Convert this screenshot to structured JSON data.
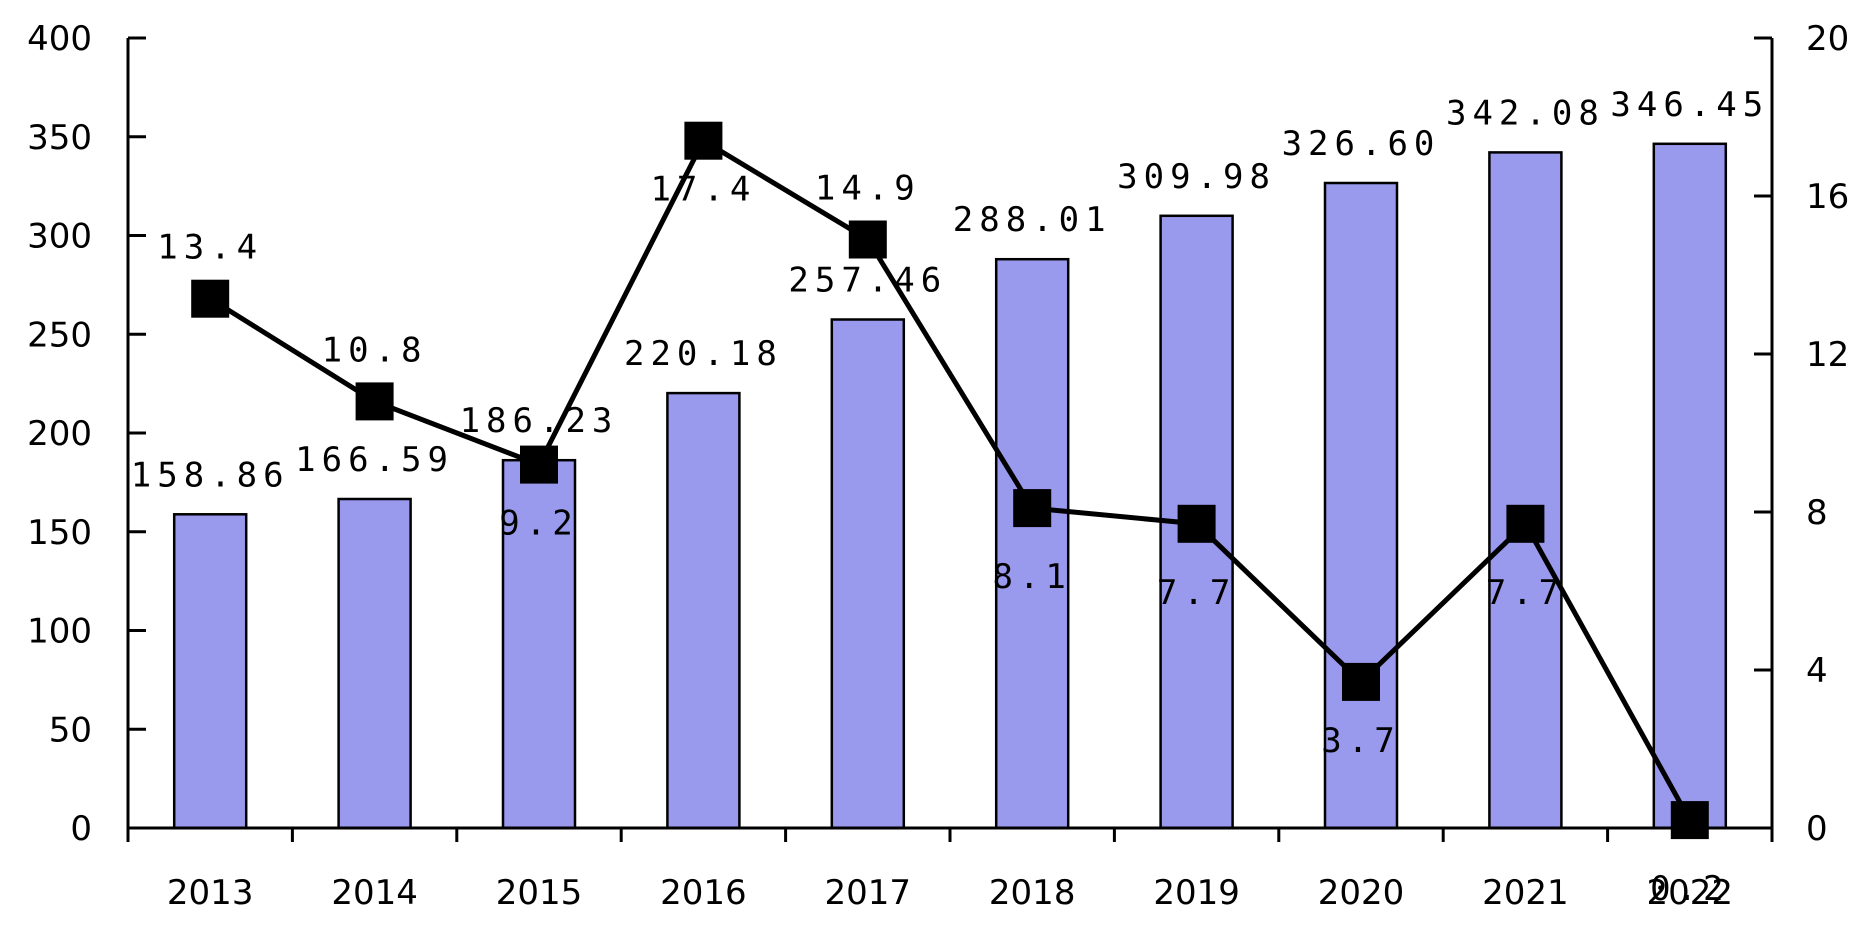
{
  "chart_data": {
    "type": "bar",
    "title": "",
    "xlabel": "",
    "ylabel": "",
    "y2label": "",
    "categories": [
      "2013",
      "2014",
      "2015",
      "2016",
      "2017",
      "2018",
      "2019",
      "2020",
      "2021",
      "2022"
    ],
    "series": [
      {
        "type": "bar",
        "axis": "left",
        "values": [
          158.86,
          166.59,
          186.23,
          220.18,
          257.46,
          288.01,
          309.98,
          326.6,
          342.08,
          346.45
        ],
        "labels": [
          "158.86",
          "166.59",
          "186.23",
          "220.18",
          "257.46",
          "288.01",
          "309.98",
          "326.60",
          "342.08",
          "346.45"
        ],
        "color": "#9999ee"
      },
      {
        "type": "line",
        "axis": "right",
        "values": [
          13.4,
          10.8,
          9.2,
          17.4,
          14.9,
          8.1,
          7.7,
          3.7,
          7.7,
          0.2
        ],
        "labels": [
          "13.4",
          "10.8",
          "9.2",
          "17.4",
          "14.9",
          "8.1",
          "7.7",
          "3.7",
          "7.7",
          "0.2"
        ],
        "color": "#000000"
      }
    ],
    "y_left": {
      "min": 0,
      "max": 400,
      "ticks": [
        0,
        50,
        100,
        150,
        200,
        250,
        300,
        350,
        400
      ]
    },
    "y_right": {
      "min": 0,
      "max": 20,
      "ticks": [
        0,
        4,
        8,
        12,
        16,
        20
      ]
    },
    "grid": false,
    "legend": "none"
  }
}
